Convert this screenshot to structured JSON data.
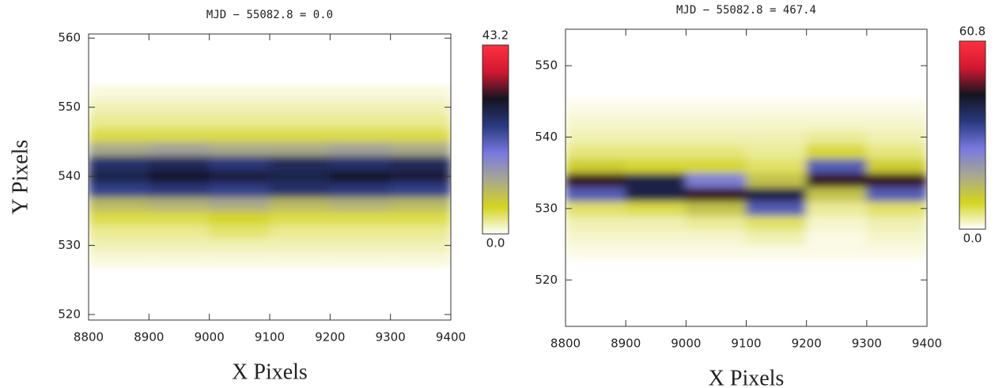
{
  "chart_data": [
    {
      "type": "heatmap",
      "title": "MJD − 55082.8 = 0.0",
      "x_label": "X Pixels",
      "y_label": "Y Pixels",
      "x": [
        8850,
        8950,
        9050,
        9150,
        9250,
        9350
      ],
      "y": [
        528,
        530,
        532,
        534,
        536,
        538,
        540,
        542,
        544,
        546,
        548,
        550,
        552
      ],
      "values": [
        [
          1,
          1,
          1,
          1,
          1,
          1
        ],
        [
          2,
          2,
          2,
          2,
          2,
          2
        ],
        [
          3,
          3,
          4,
          3,
          3,
          3
        ],
        [
          5,
          5,
          6,
          5,
          5,
          5
        ],
        [
          10,
          11,
          12,
          10,
          11,
          10
        ],
        [
          24,
          25,
          24,
          26,
          25,
          24
        ],
        [
          28,
          30,
          29,
          28,
          30,
          29
        ],
        [
          26,
          27,
          25,
          27,
          26,
          27
        ],
        [
          12,
          13,
          12,
          12,
          13,
          12
        ],
        [
          5,
          5,
          5,
          5,
          5,
          5
        ],
        [
          3,
          3,
          3,
          3,
          3,
          3
        ],
        [
          2,
          2,
          2,
          2,
          2,
          2
        ],
        [
          1,
          1,
          1,
          1,
          1,
          1
        ]
      ],
      "xlim": [
        8800,
        9400
      ],
      "ylim": [
        519.2,
        560.6
      ],
      "xticks": [
        8800,
        8900,
        9000,
        9100,
        9200,
        9300,
        9400
      ],
      "yticks": [
        520,
        530,
        540,
        550,
        560
      ],
      "clim": [
        0,
        43.2
      ],
      "cticks": [
        {
          "value": 0,
          "label": "0.0"
        },
        43.2
      ],
      "colorscale": [
        "#ffffff",
        "#d4d420",
        "#a8a890",
        "#7878e0",
        "#2a3a80",
        "#141420",
        "#d01830",
        "#ff3040"
      ]
    },
    {
      "type": "heatmap",
      "title": "MJD − 55082.8 = 467.4",
      "x_label": "X Pixels",
      "x": [
        8850,
        8950,
        9050,
        9150,
        9250,
        9350
      ],
      "y": [
        524,
        526,
        528,
        530,
        532,
        534,
        536,
        538,
        540,
        542,
        544
      ],
      "values": [
        [
          1,
          1,
          1,
          1,
          1,
          1
        ],
        [
          2,
          2,
          2,
          3,
          1,
          2
        ],
        [
          3,
          3,
          4,
          6,
          2,
          3
        ],
        [
          6,
          7,
          12,
          30,
          4,
          6
        ],
        [
          30,
          40,
          45,
          40,
          12,
          30
        ],
        [
          45,
          40,
          25,
          12,
          45,
          45
        ],
        [
          10,
          8,
          8,
          6,
          30,
          10
        ],
        [
          5,
          5,
          5,
          4,
          8,
          5
        ],
        [
          3,
          3,
          3,
          3,
          4,
          3
        ],
        [
          2,
          2,
          2,
          2,
          2,
          2
        ],
        [
          1,
          1,
          1,
          1,
          1,
          1
        ]
      ],
      "xlim": [
        8800,
        9400
      ],
      "ylim": [
        513.5,
        555.1
      ],
      "xticks": [
        8800,
        8900,
        9000,
        9100,
        9200,
        9300,
        9400
      ],
      "yticks": [
        520,
        530,
        540,
        550
      ],
      "clim": [
        0,
        60.8
      ],
      "cticks": [
        {
          "value": 0,
          "label": "0.0"
        },
        60.8
      ],
      "colorscale": [
        "#ffffff",
        "#d4d420",
        "#a8a890",
        "#7878e0",
        "#2a3a80",
        "#141420",
        "#d01830",
        "#ff3040"
      ]
    }
  ]
}
